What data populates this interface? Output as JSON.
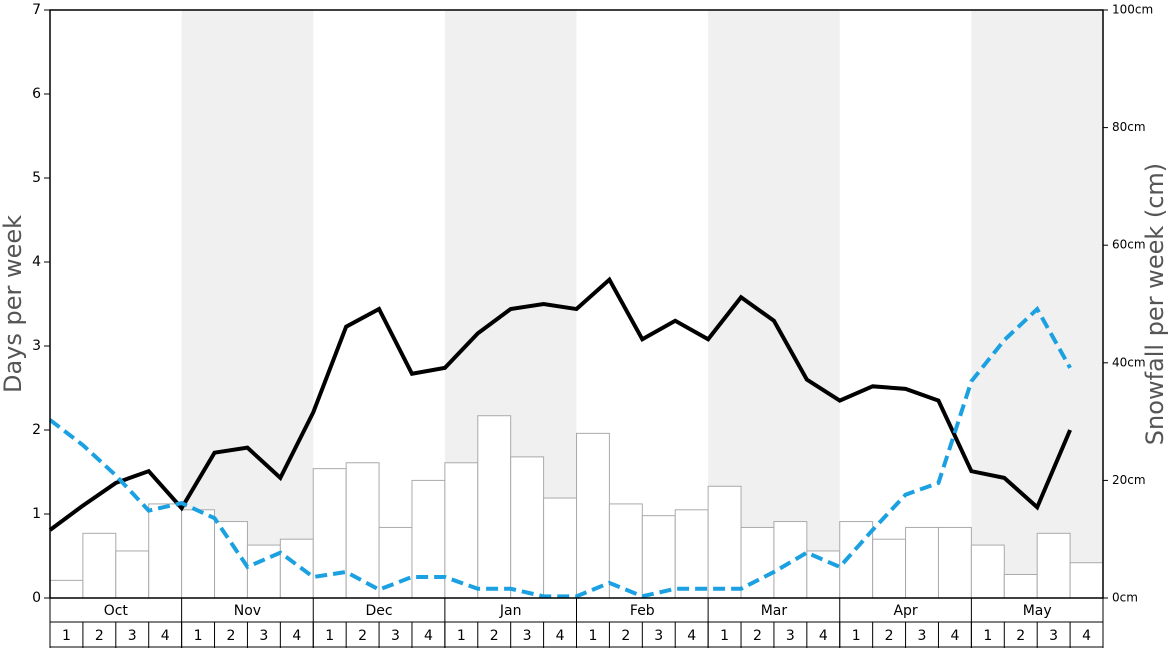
{
  "chart_data": {
    "type": "combo",
    "ylabel": "Days per week",
    "y2label": "Snowfall per week (cm)",
    "months": [
      "Oct",
      "Nov",
      "Dec",
      "Jan",
      "Feb",
      "Mar",
      "Apr",
      "May"
    ],
    "categories": [
      "1",
      "2",
      "3",
      "4",
      "1",
      "2",
      "3",
      "4",
      "1",
      "2",
      "3",
      "4",
      "1",
      "2",
      "3",
      "4",
      "1",
      "2",
      "3",
      "4",
      "1",
      "2",
      "3",
      "4",
      "1",
      "2",
      "3",
      "4",
      "1",
      "2",
      "3",
      "4"
    ],
    "ylim": [
      0,
      7
    ],
    "yticks": [
      0,
      1,
      2,
      3,
      4,
      5,
      6,
      7
    ],
    "y2lim": [
      0,
      100
    ],
    "y2ticks": [
      {
        "value": 0,
        "label": "0cm"
      },
      {
        "value": 20,
        "label": "20cm"
      },
      {
        "value": 40,
        "label": "40cm"
      },
      {
        "value": 60,
        "label": "60cm"
      },
      {
        "value": 80,
        "label": "80cm"
      },
      {
        "value": 100,
        "label": "100cm"
      }
    ],
    "series": [
      {
        "type": "bar",
        "axis": "y2",
        "color": "#ffffff",
        "values": [
          3,
          11,
          8,
          16,
          15,
          13,
          9,
          10,
          22,
          23,
          12,
          20,
          23,
          31,
          24,
          17,
          28,
          16,
          14,
          15,
          19,
          12,
          13,
          8,
          13,
          10,
          12,
          12,
          9,
          4,
          11,
          6
        ]
      },
      {
        "type": "line",
        "color": "#000000",
        "dashed": false,
        "values": [
          0.81,
          1.1,
          1.37,
          1.51,
          1.07,
          1.73,
          1.79,
          1.43,
          2.21,
          3.23,
          3.44,
          2.67,
          2.74,
          3.15,
          3.44,
          3.5,
          3.44,
          3.79,
          3.08,
          3.3,
          3.08,
          3.58,
          3.3,
          2.6,
          2.35,
          2.52,
          2.49,
          2.35,
          1.51,
          1.43,
          1.08,
          2.0
        ]
      },
      {
        "type": "line",
        "color": "#1ba1e2",
        "dashed": true,
        "values": [
          2.12,
          1.82,
          1.46,
          1.04,
          1.13,
          0.95,
          0.37,
          0.54,
          0.25,
          0.31,
          0.1,
          0.25,
          0.25,
          0.11,
          0.11,
          0.02,
          0.02,
          0.18,
          0.02,
          0.11,
          0.11,
          0.11,
          0.31,
          0.54,
          0.37,
          0.81,
          1.23,
          1.37,
          2.58,
          3.07,
          3.44,
          2.74
        ]
      }
    ]
  }
}
